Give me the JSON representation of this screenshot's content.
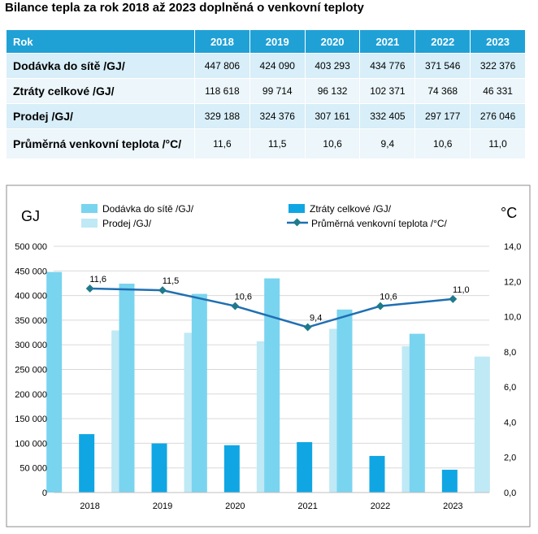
{
  "title": "Bilance tepla za rok 2018 až 2023 doplněná o venkovní teploty",
  "table": {
    "header_label": "Rok",
    "years": [
      "2018",
      "2019",
      "2020",
      "2021",
      "2022",
      "2023"
    ],
    "rows": [
      {
        "label": "Dodávka do sítě /GJ/",
        "values": [
          "447 806",
          "424 090",
          "403 293",
          "434 776",
          "371 546",
          "322 376"
        ]
      },
      {
        "label": "Ztráty celkové /GJ/",
        "values": [
          "118 618",
          "99 714",
          "96 132",
          "102 371",
          "74 368",
          "46 331"
        ]
      },
      {
        "label": "Prodej /GJ/",
        "values": [
          "329 188",
          "324 376",
          "307 161",
          "332 405",
          "297 177",
          "276 046"
        ]
      },
      {
        "label": "Průměrná venkovní teplota /°C/",
        "values": [
          "11,6",
          "11,5",
          "10,6",
          "9,4",
          "10,6",
          "11,0"
        ]
      }
    ]
  },
  "colors": {
    "dodavka": "#79d4ef",
    "ztraty": "#10a6e3",
    "prodej": "#bfe9f5",
    "teplota": "#1f6fb2",
    "marker": "#1e7a8c",
    "header": "#1fa1d6"
  },
  "chart_data": {
    "type": "bar",
    "categories": [
      "2018",
      "2019",
      "2020",
      "2021",
      "2022",
      "2023"
    ],
    "series": [
      {
        "name": "Dodávka do sítě /GJ/",
        "values": [
          447806,
          424090,
          403293,
          434776,
          371546,
          322376
        ]
      },
      {
        "name": "Ztráty celkové /GJ/",
        "values": [
          118618,
          99714,
          96132,
          102371,
          74368,
          46331
        ]
      },
      {
        "name": "Prodej /GJ/",
        "values": [
          329188,
          324376,
          307161,
          332405,
          297177,
          276046
        ]
      }
    ],
    "line_series": {
      "name": "Průměrná venkovní teplota /°C/",
      "values": [
        11.6,
        11.5,
        10.6,
        9.4,
        10.6,
        11.0
      ],
      "labels": [
        "11,6",
        "11,5",
        "10,6",
        "9,4",
        "10,6",
        "11,0"
      ]
    },
    "ylabel": "GJ",
    "y2label": "°C",
    "ylim": [
      0,
      500000
    ],
    "y2lim": [
      0,
      14
    ],
    "yticks": [
      "0",
      "50 000",
      "100 000",
      "150 000",
      "200 000",
      "250 000",
      "300 000",
      "350 000",
      "400 000",
      "450 000",
      "500 000"
    ],
    "y2ticks": [
      "0,0",
      "2,0",
      "4,0",
      "6,0",
      "8,0",
      "10,0",
      "12,0",
      "14,0"
    ],
    "legend": [
      "Dodávka do sítě /GJ/",
      "Ztráty celkové /GJ/",
      "Prodej /GJ/",
      "Průměrná venkovní teplota /°C/"
    ]
  }
}
